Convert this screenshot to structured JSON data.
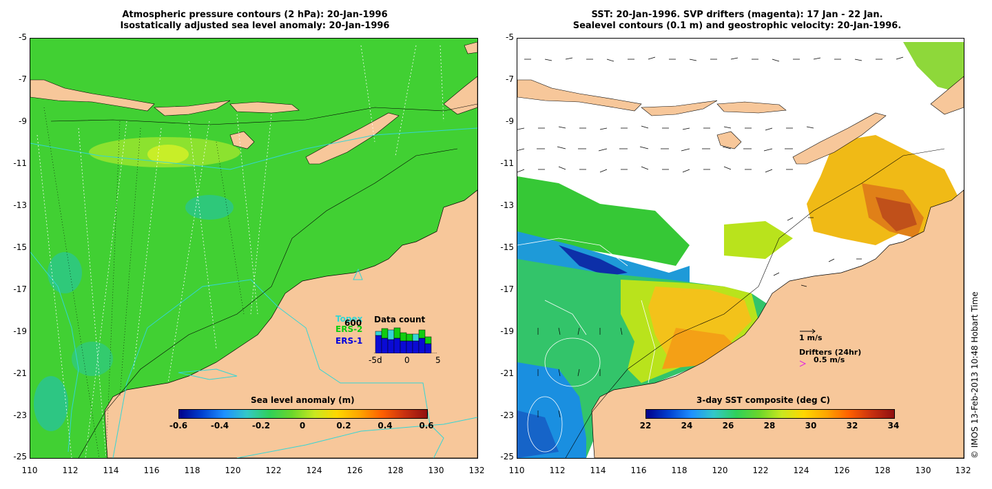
{
  "left_panel": {
    "title_line1": "Atmospheric pressure contours (2 hPa): 20-Jan-1996",
    "title_line2": "Isostatically adjusted sea level anomaly: 20-Jan-1996",
    "colorbar_label": "Sea level anomaly (m)",
    "colorbar_ticks": [
      "-0.6",
      "-0.4",
      "-0.2",
      "0",
      "0.2",
      "0.4",
      "0.6"
    ],
    "legend": {
      "topex": "Topex",
      "ers2": "ERS-2",
      "ers1": "ERS-1",
      "data_count_title": "Data count",
      "data_count_max": "600",
      "axis_ticks": [
        "-5d",
        "0",
        "5"
      ]
    }
  },
  "right_panel": {
    "title_line1": "SST: 20-Jan-1996. SVP drifters (magenta): 17 Jan - 22 Jan.",
    "title_line2": "Sealevel contours (0.1 m) and geostrophic velocity: 20-Jan-1996.",
    "colorbar_label": "3-day SST composite (deg C)",
    "colorbar_ticks": [
      "22",
      "24",
      "26",
      "28",
      "30",
      "32",
      "34"
    ],
    "velocity_scale": "1 m/s",
    "drifters_label": "Drifters (24hr)",
    "drifters_scale": "0.5 m/s"
  },
  "y_ticks": [
    "-5",
    "-7",
    "-9",
    "-11",
    "-13",
    "-15",
    "-17",
    "-19",
    "-21",
    "-23",
    "-25"
  ],
  "x_ticks": [
    "110",
    "112",
    "114",
    "116",
    "118",
    "120",
    "122",
    "124",
    "126",
    "128",
    "130",
    "132"
  ],
  "credit": "© IMOS 13-Feb-2013 10:48 Hobart Time",
  "colors": {
    "land": "#f7c79a",
    "ocean_green": "#3fd132",
    "ocean_light": "#2fc94f",
    "contour_cyan": "#33d5d5"
  }
}
